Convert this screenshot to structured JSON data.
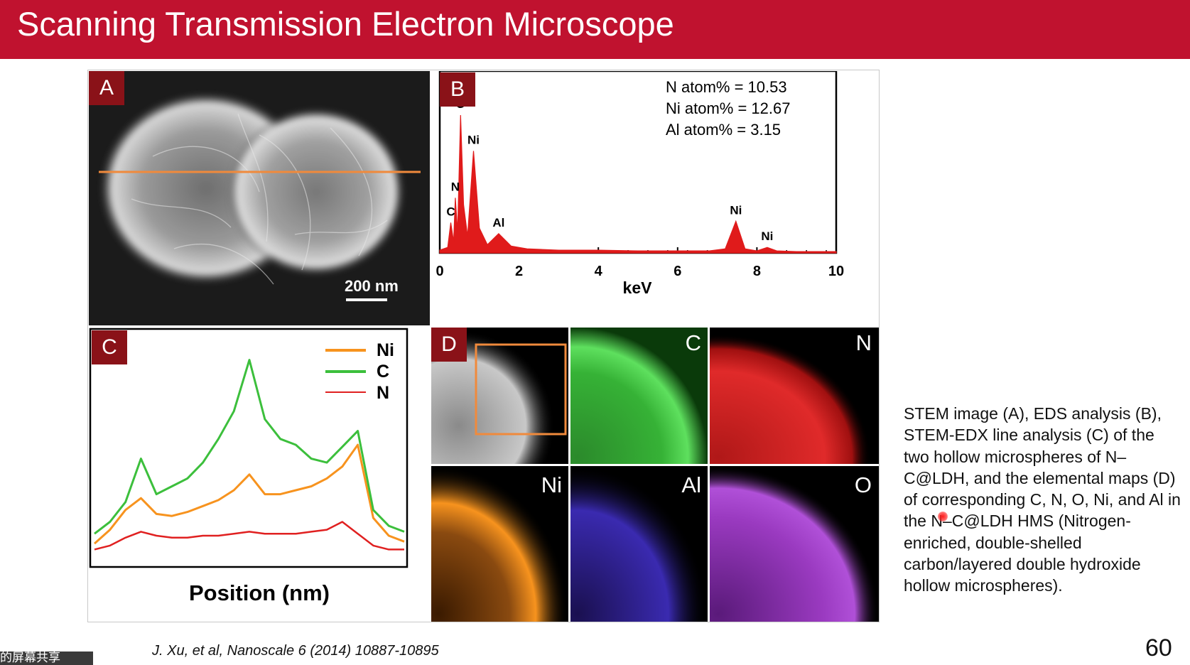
{
  "slide": {
    "title": "Scanning Transmission Electron Microscope",
    "caption": "STEM image (A), EDS analysis (B), STEM-EDX line analysis (C) of the two hollow microspheres of N–C@LDH, and the elemental maps (D) of corresponding C, N, O, Ni, and Al in the N–C@LDH HMS (Nitrogen-enriched, double-shelled carbon/layered double hydroxide hollow microspheres).",
    "citation": "J. Xu, et al, Nanoscale 6 (2014) 10887-10895",
    "page_number": "60",
    "share_badge": "的屏幕共享"
  },
  "colors": {
    "title_bar": "#c0122f",
    "panel_label_bg": "#8a1218",
    "scan_line": "#f08a3c",
    "spectrum": "#e01b1b",
    "ni": "#f7931e",
    "c": "#3cbf3c",
    "n": "#e02020",
    "al": "#4a3ad8",
    "o": "#a040c8"
  },
  "panels": {
    "a": {
      "label": "A",
      "scale_bar": "200 nm"
    },
    "b": {
      "label": "B",
      "stats": [
        "N atom% = 10.53",
        "Ni atom% = 12.67",
        "Al atom% = 3.15"
      ]
    },
    "c": {
      "label": "C",
      "xlabel": "Position (nm)",
      "legend": [
        "Ni",
        "C",
        "N"
      ]
    },
    "d": {
      "label": "D",
      "maps": [
        "C",
        "N",
        "Ni",
        "Al",
        "O"
      ]
    }
  },
  "chart_data": [
    {
      "type": "line",
      "panel": "B",
      "xlabel": "keV",
      "ylabel": "",
      "xlim": [
        0,
        10
      ],
      "xticks": [
        "0",
        "2",
        "4",
        "6",
        "8",
        "10"
      ],
      "series": [
        {
          "name": "",
          "x": [
            0.0,
            0.2,
            0.277,
            0.35,
            0.392,
            0.45,
            0.525,
            0.6,
            0.7,
            0.851,
            1.0,
            1.2,
            1.486,
            1.8,
            2.2,
            3.0,
            4.0,
            5.0,
            6.0,
            6.8,
            7.2,
            7.47,
            7.7,
            8.0,
            8.26,
            8.5,
            9.0,
            10.0
          ],
          "y": [
            2,
            4,
            22,
            8,
            40,
            15,
            100,
            35,
            12,
            74,
            18,
            6,
            14,
            5,
            3,
            2,
            2,
            1.5,
            1.5,
            1.5,
            3,
            23,
            3,
            1.5,
            4,
            1.5,
            1,
            1
          ]
        }
      ],
      "annotations": [
        {
          "label": "C",
          "x": 0.277
        },
        {
          "label": "N",
          "x": 0.392
        },
        {
          "label": "O",
          "x": 0.525
        },
        {
          "label": "Ni",
          "x": 0.851
        },
        {
          "label": "Al",
          "x": 1.486
        },
        {
          "label": "Ni",
          "x": 7.47
        },
        {
          "label": "Ni",
          "x": 8.26
        }
      ]
    },
    {
      "type": "line",
      "panel": "C",
      "xlabel": "Position (nm)",
      "ylabel": "",
      "series": [
        {
          "name": "Ni",
          "x": [
            0,
            5,
            10,
            15,
            20,
            25,
            30,
            35,
            40,
            45,
            50,
            55,
            60,
            65,
            70,
            75,
            80,
            85,
            90,
            95,
            100
          ],
          "y": [
            5,
            12,
            22,
            28,
            20,
            19,
            21,
            24,
            27,
            32,
            40,
            30,
            30,
            32,
            34,
            38,
            44,
            55,
            18,
            9,
            6
          ]
        },
        {
          "name": "C",
          "x": [
            0,
            5,
            10,
            15,
            20,
            25,
            30,
            35,
            40,
            45,
            50,
            55,
            60,
            65,
            70,
            75,
            80,
            85,
            90,
            95,
            100
          ],
          "y": [
            10,
            16,
            26,
            48,
            30,
            34,
            38,
            46,
            58,
            72,
            98,
            68,
            58,
            55,
            48,
            46,
            54,
            62,
            22,
            14,
            11
          ]
        },
        {
          "name": "N",
          "x": [
            0,
            5,
            10,
            15,
            20,
            25,
            30,
            35,
            40,
            45,
            50,
            55,
            60,
            65,
            70,
            75,
            80,
            85,
            90,
            95,
            100
          ],
          "y": [
            2,
            4,
            8,
            11,
            9,
            8,
            8,
            9,
            9,
            10,
            11,
            10,
            10,
            10,
            11,
            12,
            16,
            10,
            4,
            2,
            2
          ]
        }
      ]
    }
  ]
}
